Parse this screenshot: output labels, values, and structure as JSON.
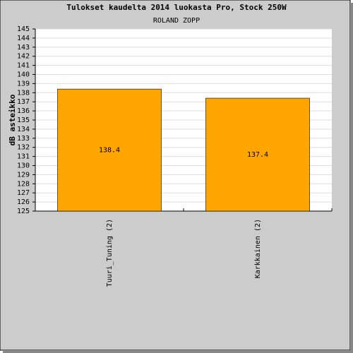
{
  "chart_data": {
    "type": "bar",
    "title": "Tulokset kaudelta 2014 luokasta Pro, Stock 250W",
    "subtitle": "ROLAND ZOPP",
    "y_label": "dB asteikko",
    "categories": [
      "Tuuri_Tuning (2)",
      "Karkkainen (2)"
    ],
    "values": [
      138.4,
      137.4
    ],
    "color": "#ffa500",
    "ylim": [
      125,
      145
    ],
    "yticks": [
      125,
      126,
      127,
      128,
      129,
      130,
      131,
      132,
      133,
      134,
      135,
      136,
      137,
      138,
      139,
      140,
      141,
      142,
      143,
      144,
      145
    ],
    "grid": true
  }
}
